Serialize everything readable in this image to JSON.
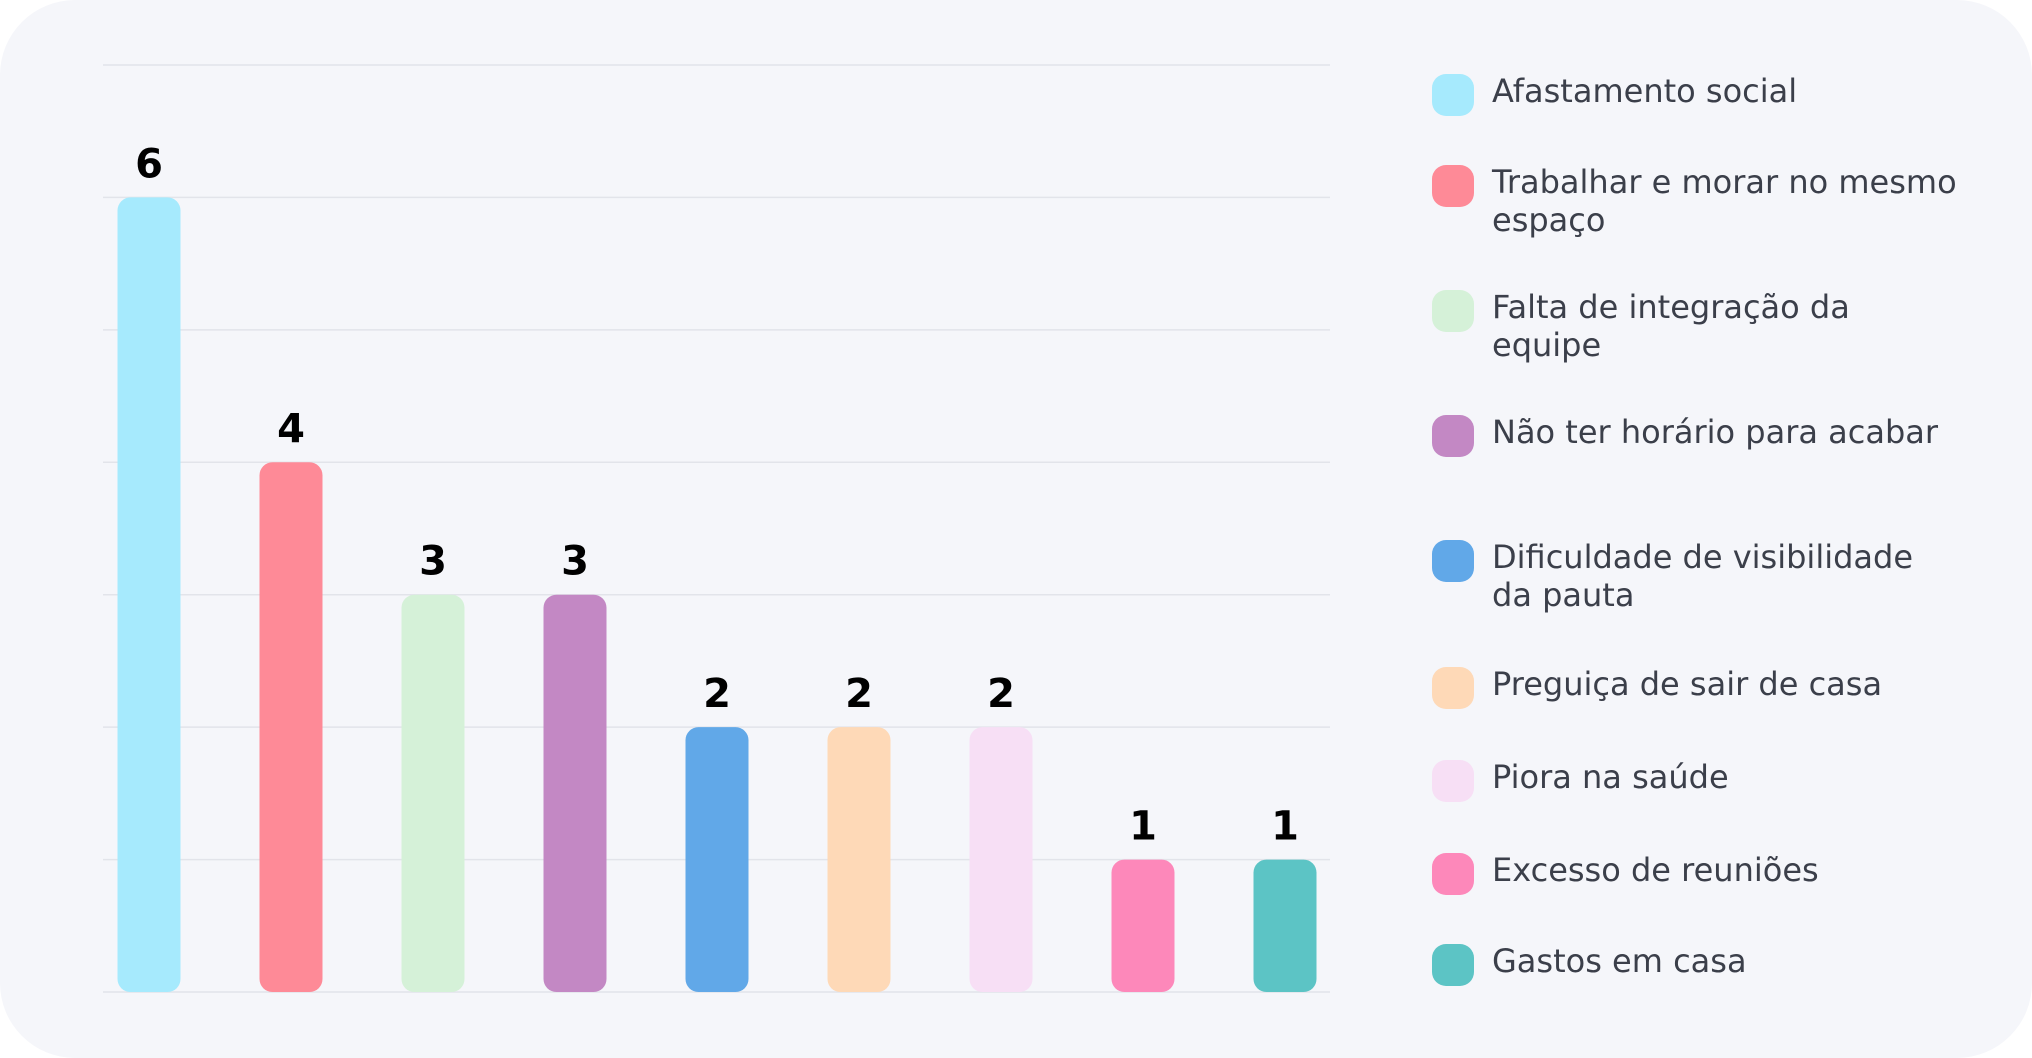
{
  "chart_data": {
    "type": "bar",
    "categories": [
      "Afastamento social",
      "Trabalhar e morar no mesmo espaço",
      "Falta de integração da equipe",
      "Não ter horário para acabar",
      "Dificuldade de visibilidade da pauta",
      "Preguiça de sair de casa",
      "Piora na saúde",
      "Excesso de reuniões",
      "Gastos em casa"
    ],
    "values": [
      6,
      4,
      3,
      3,
      2,
      2,
      2,
      1,
      1
    ],
    "value_labels": [
      "6",
      "4",
      "3",
      "3",
      "2",
      "2",
      "2",
      "1",
      "1"
    ],
    "colors": [
      "#a6eafd",
      "#fe8a97",
      "#d5f1d8",
      "#c388c4",
      "#61a8e8",
      "#fed9b7",
      "#f7dff5",
      "#fd88ba",
      "#5cc4c5"
    ],
    "ylim": [
      0,
      7
    ],
    "grid": true,
    "legend_position": "right"
  }
}
